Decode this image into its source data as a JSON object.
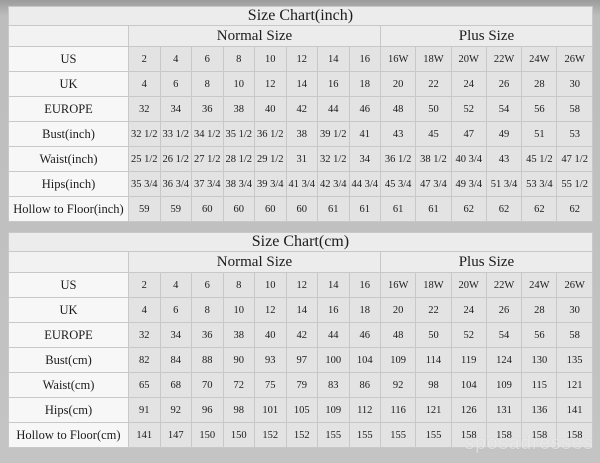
{
  "watermark": "sposadresses",
  "tables": [
    {
      "title": "Size Chart(inch)",
      "normal_label": "Normal Size",
      "plus_label": "Plus Size",
      "rows": [
        {
          "label": "US",
          "values": [
            "2",
            "4",
            "6",
            "8",
            "10",
            "12",
            "14",
            "16",
            "16W",
            "18W",
            "20W",
            "22W",
            "24W",
            "26W"
          ]
        },
        {
          "label": "UK",
          "values": [
            "4",
            "6",
            "8",
            "10",
            "12",
            "14",
            "16",
            "18",
            "20",
            "22",
            "24",
            "26",
            "28",
            "30"
          ]
        },
        {
          "label": "EUROPE",
          "values": [
            "32",
            "34",
            "36",
            "38",
            "40",
            "42",
            "44",
            "46",
            "48",
            "50",
            "52",
            "54",
            "56",
            "58"
          ]
        },
        {
          "label": "Bust(inch)",
          "values": [
            "32 1/2",
            "33 1/2",
            "34 1/2",
            "35 1/2",
            "36 1/2",
            "38",
            "39 1/2",
            "41",
            "43",
            "45",
            "47",
            "49",
            "51",
            "53"
          ]
        },
        {
          "label": "Waist(inch)",
          "values": [
            "25 1/2",
            "26 1/2",
            "27 1/2",
            "28 1/2",
            "29 1/2",
            "31",
            "32 1/2",
            "34",
            "36 1/2",
            "38 1/2",
            "40 3/4",
            "43",
            "45 1/2",
            "47 1/2"
          ]
        },
        {
          "label": "Hips(inch)",
          "values": [
            "35 3/4",
            "36 3/4",
            "37 3/4",
            "38 3/4",
            "39 3/4",
            "41 3/4",
            "42 3/4",
            "44 3/4",
            "45 3/4",
            "47 3/4",
            "49 3/4",
            "51 3/4",
            "53 3/4",
            "55 1/2"
          ]
        },
        {
          "label": "Hollow to Floor(inch)",
          "values": [
            "59",
            "59",
            "60",
            "60",
            "60",
            "60",
            "61",
            "61",
            "61",
            "61",
            "62",
            "62",
            "62",
            "62"
          ]
        }
      ]
    },
    {
      "title": "Size Chart(cm)",
      "normal_label": "Normal Size",
      "plus_label": "Plus Size",
      "rows": [
        {
          "label": "US",
          "values": [
            "2",
            "4",
            "6",
            "8",
            "10",
            "12",
            "14",
            "16",
            "16W",
            "18W",
            "20W",
            "22W",
            "24W",
            "26W"
          ]
        },
        {
          "label": "UK",
          "values": [
            "4",
            "6",
            "8",
            "10",
            "12",
            "14",
            "16",
            "18",
            "20",
            "22",
            "24",
            "26",
            "28",
            "30"
          ]
        },
        {
          "label": "EUROPE",
          "values": [
            "32",
            "34",
            "36",
            "38",
            "40",
            "42",
            "44",
            "46",
            "48",
            "50",
            "52",
            "54",
            "56",
            "58"
          ]
        },
        {
          "label": "Bust(cm)",
          "values": [
            "82",
            "84",
            "88",
            "90",
            "93",
            "97",
            "100",
            "104",
            "109",
            "114",
            "119",
            "124",
            "130",
            "135"
          ]
        },
        {
          "label": "Waist(cm)",
          "values": [
            "65",
            "68",
            "70",
            "72",
            "75",
            "79",
            "83",
            "86",
            "92",
            "98",
            "104",
            "109",
            "115",
            "121"
          ]
        },
        {
          "label": "Hips(cm)",
          "values": [
            "91",
            "92",
            "96",
            "98",
            "101",
            "105",
            "109",
            "112",
            "116",
            "121",
            "126",
            "131",
            "136",
            "141"
          ]
        },
        {
          "label": "Hollow to Floor(cm)",
          "values": [
            "141",
            "147",
            "150",
            "150",
            "152",
            "152",
            "155",
            "155",
            "155",
            "155",
            "158",
            "158",
            "158",
            "158"
          ]
        }
      ]
    }
  ]
}
